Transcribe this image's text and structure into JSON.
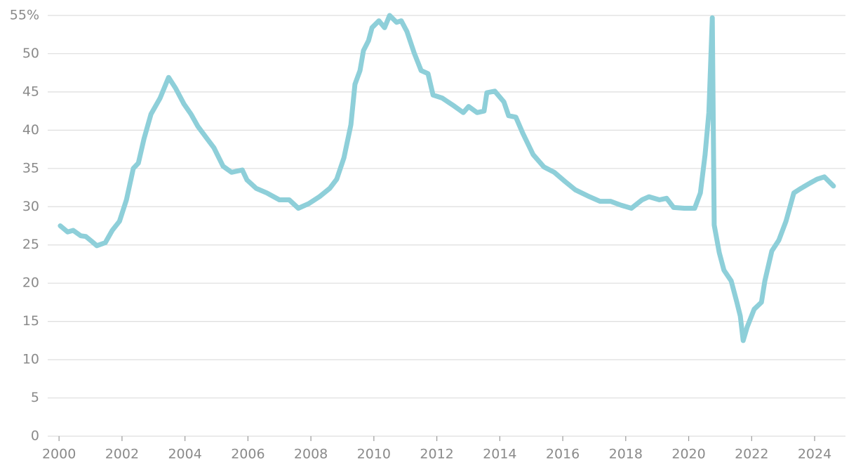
{
  "chart_data": {
    "type": "line",
    "x": [
      2000.04,
      2000.27,
      2000.45,
      2000.69,
      2000.85,
      2001.03,
      2001.2,
      2001.47,
      2001.69,
      2001.92,
      2002.14,
      2002.36,
      2002.52,
      2002.7,
      2002.92,
      2003.21,
      2003.48,
      2003.7,
      2003.97,
      2004.19,
      2004.41,
      2004.7,
      2004.92,
      2005.21,
      2005.48,
      2005.82,
      2005.97,
      2006.26,
      2006.6,
      2007.0,
      2007.31,
      2007.6,
      2007.93,
      2008.27,
      2008.6,
      2008.82,
      2009.05,
      2009.27,
      2009.4,
      2009.56,
      2009.67,
      2009.83,
      2009.94,
      2010.16,
      2010.34,
      2010.5,
      2010.72,
      2010.87,
      2011.05,
      2011.28,
      2011.5,
      2011.72,
      2011.88,
      2012.17,
      2012.5,
      2012.84,
      2013.01,
      2013.28,
      2013.5,
      2013.59,
      2013.84,
      2014.13,
      2014.28,
      2014.51,
      2014.73,
      2015.06,
      2015.4,
      2015.73,
      2016.07,
      2016.4,
      2016.85,
      2017.18,
      2017.52,
      2017.85,
      2018.18,
      2018.52,
      2018.74,
      2019.07,
      2019.3,
      2019.52,
      2019.86,
      2020.19,
      2020.37,
      2020.52,
      2020.64,
      2020.75,
      2020.81,
      2020.97,
      2021.12,
      2021.35,
      2021.53,
      2021.64,
      2021.73,
      2021.86,
      2022.08,
      2022.31,
      2022.42,
      2022.64,
      2022.86,
      2023.09,
      2023.34,
      2023.57,
      2023.86,
      2024.08,
      2024.31,
      2024.6
    ],
    "values": [
      27.5,
      26.7,
      26.9,
      26.2,
      26.1,
      25.5,
      24.9,
      25.3,
      26.9,
      28.1,
      30.9,
      35.0,
      35.7,
      38.9,
      42.1,
      44.2,
      46.9,
      45.5,
      43.4,
      42.1,
      40.5,
      38.9,
      37.7,
      35.3,
      34.5,
      34.8,
      33.5,
      32.4,
      31.8,
      30.9,
      30.9,
      29.8,
      30.4,
      31.3,
      32.4,
      33.6,
      36.4,
      40.7,
      46.0,
      47.8,
      50.4,
      51.7,
      53.4,
      54.3,
      53.4,
      55.0,
      54.1,
      54.3,
      52.9,
      50.1,
      47.8,
      47.4,
      44.6,
      44.2,
      43.3,
      42.3,
      43.1,
      42.3,
      42.5,
      44.9,
      45.1,
      43.7,
      41.9,
      41.7,
      39.6,
      36.8,
      35.2,
      34.5,
      33.3,
      32.2,
      31.3,
      30.7,
      30.7,
      30.2,
      29.8,
      30.9,
      31.3,
      30.9,
      31.1,
      29.9,
      29.8,
      29.8,
      31.8,
      36.8,
      42.3,
      54.7,
      27.6,
      24.0,
      21.7,
      20.3,
      17.5,
      15.7,
      12.5,
      14.3,
      16.6,
      17.5,
      20.3,
      24.2,
      25.6,
      28.1,
      31.8,
      32.4,
      33.1,
      33.6,
      33.9,
      32.7
    ],
    "color": "#8ecfd9",
    "xlim": [
      1999.64,
      2024.98
    ],
    "xticks": [
      2000,
      2002,
      2004,
      2006,
      2008,
      2010,
      2012,
      2014,
      2016,
      2018,
      2020,
      2022,
      2024
    ],
    "ylim": [
      0,
      55
    ],
    "yticks": [
      0,
      5,
      10,
      15,
      20,
      25,
      30,
      35,
      40,
      45,
      50,
      {
        "value": 55,
        "label": "55%"
      }
    ],
    "grid": true
  }
}
